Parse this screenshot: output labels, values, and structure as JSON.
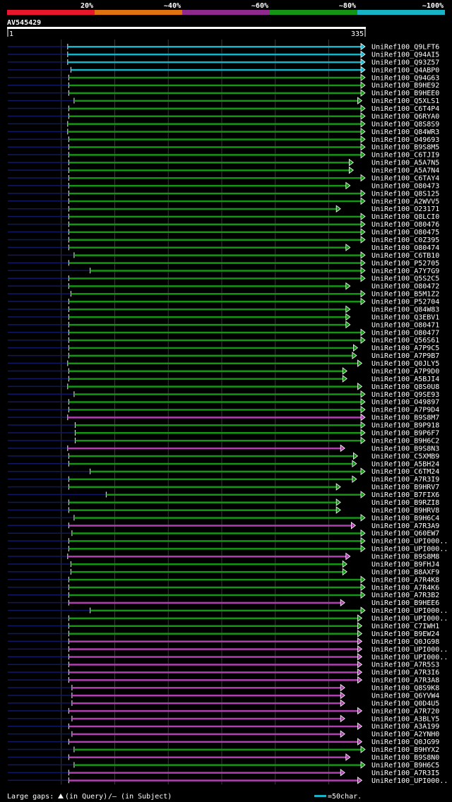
{
  "chart_data": {
    "type": "blast-alignment",
    "query": {
      "name": "AV545429",
      "start": "1",
      "end": "335",
      "length": 335
    },
    "identity_legend": [
      {
        "label": "20%",
        "color": "#e8172b"
      },
      {
        "label": "~40%",
        "color": "#e0720f"
      },
      {
        "label": "~60%",
        "color": "#8e2a8e"
      },
      {
        "label": "~80%",
        "color": "#149614"
      },
      {
        "label": "~100%",
        "color": "#17b4c8"
      }
    ],
    "class_colors": {
      "cyan": "#17b4c8",
      "green": "#149614",
      "magenta": "#b040b0"
    },
    "hits": [
      {
        "name": "UniRef100_Q9LFT6",
        "start": 57,
        "end": 335,
        "cls": "cyan"
      },
      {
        "name": "UniRef100_Q94AI5",
        "start": 57,
        "end": 335,
        "cls": "cyan"
      },
      {
        "name": "UniRef100_Q93Z57",
        "start": 57,
        "end": 335,
        "cls": "cyan"
      },
      {
        "name": "UniRef100_Q4ABP0",
        "start": 60,
        "end": 335,
        "cls": "cyan"
      },
      {
        "name": "UniRef100_Q94G63",
        "start": 58,
        "end": 335,
        "cls": "green"
      },
      {
        "name": "UniRef100_B9HE92",
        "start": 58,
        "end": 335,
        "cls": "green"
      },
      {
        "name": "UniRef100_B9HEE0",
        "start": 58,
        "end": 335,
        "cls": "green"
      },
      {
        "name": "UniRef100_Q5XLS1",
        "start": 63,
        "end": 332,
        "cls": "green"
      },
      {
        "name": "UniRef100_C6T4P4",
        "start": 58,
        "end": 335,
        "cls": "green"
      },
      {
        "name": "UniRef100_Q6RYA0",
        "start": 58,
        "end": 335,
        "cls": "green"
      },
      {
        "name": "UniRef100_Q8S8S9",
        "start": 57,
        "end": 335,
        "cls": "green"
      },
      {
        "name": "UniRef100_Q84WR3",
        "start": 57,
        "end": 335,
        "cls": "green"
      },
      {
        "name": "UniRef100_O49693",
        "start": 58,
        "end": 335,
        "cls": "green"
      },
      {
        "name": "UniRef100_B9S8M5",
        "start": 58,
        "end": 335,
        "cls": "green"
      },
      {
        "name": "UniRef100_C6TJI9",
        "start": 58,
        "end": 335,
        "cls": "green"
      },
      {
        "name": "UniRef100_A5A7N5",
        "start": 58,
        "end": 324,
        "cls": "green"
      },
      {
        "name": "UniRef100_A5A7N4",
        "start": 58,
        "end": 324,
        "cls": "green"
      },
      {
        "name": "UniRef100_C6TAY4",
        "start": 58,
        "end": 335,
        "cls": "green"
      },
      {
        "name": "UniRef100_O80473",
        "start": 58,
        "end": 321,
        "cls": "green"
      },
      {
        "name": "UniRef100_Q8S125",
        "start": 58,
        "end": 335,
        "cls": "green"
      },
      {
        "name": "UniRef100_A2WVV5",
        "start": 58,
        "end": 335,
        "cls": "green"
      },
      {
        "name": "UniRef100_O23171",
        "start": 58,
        "end": 312,
        "cls": "green"
      },
      {
        "name": "UniRef100_Q8LCI0",
        "start": 58,
        "end": 335,
        "cls": "green"
      },
      {
        "name": "UniRef100_O80476",
        "start": 58,
        "end": 335,
        "cls": "green"
      },
      {
        "name": "UniRef100_O80475",
        "start": 58,
        "end": 335,
        "cls": "green"
      },
      {
        "name": "UniRef100_C0Z395",
        "start": 58,
        "end": 335,
        "cls": "green"
      },
      {
        "name": "UniRef100_O80474",
        "start": 58,
        "end": 321,
        "cls": "green"
      },
      {
        "name": "UniRef100_C6TB10",
        "start": 63,
        "end": 335,
        "cls": "green"
      },
      {
        "name": "UniRef100_P52705",
        "start": 58,
        "end": 335,
        "cls": "green"
      },
      {
        "name": "UniRef100_A7Y7G9",
        "start": 78,
        "end": 335,
        "cls": "green"
      },
      {
        "name": "UniRef100_Q5S2C5",
        "start": 58,
        "end": 335,
        "cls": "green"
      },
      {
        "name": "UniRef100_O80472",
        "start": 58,
        "end": 321,
        "cls": "green"
      },
      {
        "name": "UniRef100_B5M1Z2",
        "start": 60,
        "end": 335,
        "cls": "green"
      },
      {
        "name": "UniRef100_P52704",
        "start": 58,
        "end": 335,
        "cls": "green"
      },
      {
        "name": "UniRef100_Q84W83",
        "start": 58,
        "end": 321,
        "cls": "green"
      },
      {
        "name": "UniRef100_Q3EBV1",
        "start": 58,
        "end": 321,
        "cls": "green"
      },
      {
        "name": "UniRef100_O80471",
        "start": 58,
        "end": 321,
        "cls": "green"
      },
      {
        "name": "UniRef100_O80477",
        "start": 58,
        "end": 335,
        "cls": "green"
      },
      {
        "name": "UniRef100_Q56S61",
        "start": 58,
        "end": 335,
        "cls": "green"
      },
      {
        "name": "UniRef100_A7P9C5",
        "start": 58,
        "end": 328,
        "cls": "green"
      },
      {
        "name": "UniRef100_A7P9B7",
        "start": 58,
        "end": 327,
        "cls": "green"
      },
      {
        "name": "UniRef100_Q0JLY5",
        "start": 57,
        "end": 332,
        "cls": "green"
      },
      {
        "name": "UniRef100_A7P9D0",
        "start": 58,
        "end": 318,
        "cls": "green"
      },
      {
        "name": "UniRef100_A5BJI4",
        "start": 58,
        "end": 318,
        "cls": "green"
      },
      {
        "name": "UniRef100_Q8S0U8",
        "start": 57,
        "end": 332,
        "cls": "green"
      },
      {
        "name": "UniRef100_Q9SE93",
        "start": 63,
        "end": 335,
        "cls": "green"
      },
      {
        "name": "UniRef100_O49897",
        "start": 58,
        "end": 335,
        "cls": "green"
      },
      {
        "name": "UniRef100_A7P9D4",
        "start": 58,
        "end": 335,
        "cls": "green"
      },
      {
        "name": "UniRef100_B9S8M7",
        "start": 57,
        "end": 335,
        "cls": "magenta"
      },
      {
        "name": "UniRef100_B9P918",
        "start": 64,
        "end": 335,
        "cls": "green"
      },
      {
        "name": "UniRef100_B9P6F7",
        "start": 64,
        "end": 335,
        "cls": "green"
      },
      {
        "name": "UniRef100_B9H6C2",
        "start": 64,
        "end": 335,
        "cls": "green"
      },
      {
        "name": "UniRef100_B9S8N3",
        "start": 57,
        "end": 316,
        "cls": "magenta"
      },
      {
        "name": "UniRef100_C5XMB9",
        "start": 58,
        "end": 328,
        "cls": "green"
      },
      {
        "name": "UniRef100_A5BH24",
        "start": 58,
        "end": 327,
        "cls": "green"
      },
      {
        "name": "UniRef100_C6TM24",
        "start": 78,
        "end": 335,
        "cls": "green"
      },
      {
        "name": "UniRef100_A7R3I9",
        "start": 58,
        "end": 327,
        "cls": "green"
      },
      {
        "name": "UniRef100_B9HRV7",
        "start": 58,
        "end": 312,
        "cls": "green"
      },
      {
        "name": "UniRef100_B7FIX6",
        "start": 93,
        "end": 335,
        "cls": "green"
      },
      {
        "name": "UniRef100_B9RZI8",
        "start": 58,
        "end": 312,
        "cls": "green"
      },
      {
        "name": "UniRef100_B9HRV8",
        "start": 58,
        "end": 312,
        "cls": "green"
      },
      {
        "name": "UniRef100_B9H6C4",
        "start": 63,
        "end": 335,
        "cls": "green"
      },
      {
        "name": "UniRef100_A7R3A9",
        "start": 58,
        "end": 326,
        "cls": "magenta"
      },
      {
        "name": "UniRef100_Q60EW7",
        "start": 61,
        "end": 335,
        "cls": "green"
      },
      {
        "name": "UniRef100_UPI000..",
        "start": 58,
        "end": 335,
        "cls": "green"
      },
      {
        "name": "UniRef100_UPI000..",
        "start": 58,
        "end": 335,
        "cls": "green"
      },
      {
        "name": "UniRef100_B9S8M8",
        "start": 57,
        "end": 321,
        "cls": "magenta"
      },
      {
        "name": "UniRef100_B9FHJ4",
        "start": 60,
        "end": 318,
        "cls": "green"
      },
      {
        "name": "UniRef100_B8AXF9",
        "start": 60,
        "end": 318,
        "cls": "green"
      },
      {
        "name": "UniRef100_A7R4K8",
        "start": 58,
        "end": 335,
        "cls": "green"
      },
      {
        "name": "UniRef100_A7R4K6",
        "start": 58,
        "end": 335,
        "cls": "green"
      },
      {
        "name": "UniRef100_A7R3B2",
        "start": 58,
        "end": 335,
        "cls": "green"
      },
      {
        "name": "UniRef100_B9HEE6",
        "start": 58,
        "end": 316,
        "cls": "magenta"
      },
      {
        "name": "UniRef100_UPI000..",
        "start": 78,
        "end": 335,
        "cls": "green"
      },
      {
        "name": "UniRef100_UPI000..",
        "start": 58,
        "end": 332,
        "cls": "green"
      },
      {
        "name": "UniRef100_C7IWH1",
        "start": 58,
        "end": 332,
        "cls": "green"
      },
      {
        "name": "UniRef100_B9EW24",
        "start": 58,
        "end": 332,
        "cls": "green"
      },
      {
        "name": "UniRef100_Q0JG98",
        "start": 58,
        "end": 332,
        "cls": "magenta"
      },
      {
        "name": "UniRef100_UPI000..",
        "start": 58,
        "end": 332,
        "cls": "magenta"
      },
      {
        "name": "UniRef100_UPI000..",
        "start": 58,
        "end": 332,
        "cls": "magenta"
      },
      {
        "name": "UniRef100_A7R5S3",
        "start": 58,
        "end": 332,
        "cls": "magenta"
      },
      {
        "name": "UniRef100_A7R3I6",
        "start": 58,
        "end": 332,
        "cls": "magenta"
      },
      {
        "name": "UniRef100_A7R3A8",
        "start": 58,
        "end": 332,
        "cls": "magenta"
      },
      {
        "name": "UniRef100_Q8S9K8",
        "start": 61,
        "end": 316,
        "cls": "magenta"
      },
      {
        "name": "UniRef100_Q6YVW4",
        "start": 61,
        "end": 316,
        "cls": "magenta"
      },
      {
        "name": "UniRef100_Q0D4U5",
        "start": 61,
        "end": 316,
        "cls": "magenta"
      },
      {
        "name": "UniRef100_A7R720",
        "start": 58,
        "end": 332,
        "cls": "magenta"
      },
      {
        "name": "UniRef100_A3BLY5",
        "start": 61,
        "end": 316,
        "cls": "magenta"
      },
      {
        "name": "UniRef100_A3A199",
        "start": 58,
        "end": 332,
        "cls": "magenta"
      },
      {
        "name": "UniRef100_A2YNH0",
        "start": 61,
        "end": 316,
        "cls": "magenta"
      },
      {
        "name": "UniRef100_Q0JG99",
        "start": 58,
        "end": 332,
        "cls": "magenta"
      },
      {
        "name": "UniRef100_B9HYX2",
        "start": 63,
        "end": 335,
        "cls": "green"
      },
      {
        "name": "UniRef100_B9S8N0",
        "start": 58,
        "end": 321,
        "cls": "magenta"
      },
      {
        "name": "UniRef100_B9H6C5",
        "start": 63,
        "end": 335,
        "cls": "green"
      },
      {
        "name": "UniRef100_A7R3I5",
        "start": 58,
        "end": 316,
        "cls": "magenta"
      },
      {
        "name": "UniRef100_UPI000..",
        "start": 58,
        "end": 332,
        "cls": "magenta"
      }
    ],
    "footer": {
      "gaps_label": "Large gaps:",
      "gap_query_label": "(in Query)",
      "gap_subject_label": "/— (in Subject)",
      "scale_label": "=50char."
    }
  }
}
